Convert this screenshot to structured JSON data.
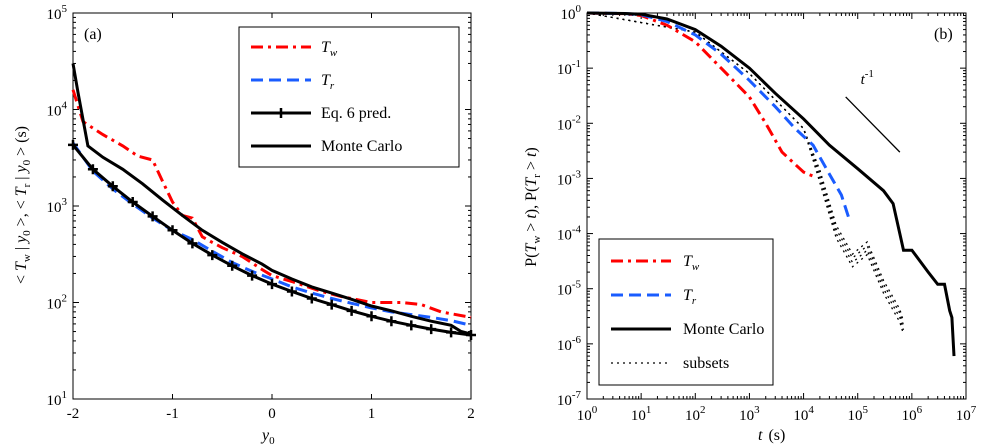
{
  "colors": {
    "red": "#ff0000",
    "blue": "#1a5cff",
    "black": "#000000"
  },
  "chart_data": [
    {
      "panel": "(a)",
      "type": "line",
      "xlabel_var": "y",
      "xlabel_sub": "0",
      "ylabel": "< T_w | y_0 >, < T_r | y_0 > (s)",
      "xlim": [
        -2,
        2
      ],
      "ylim": [
        10,
        100000
      ],
      "yscale": "log",
      "x_ticks": [
        "-2",
        "-1",
        "0",
        "1",
        "2"
      ],
      "y_ticks": [
        {
          "base": "10",
          "exp": "1"
        },
        {
          "base": "10",
          "exp": "2"
        },
        {
          "base": "10",
          "exp": "3"
        },
        {
          "base": "10",
          "exp": "4"
        },
        {
          "base": "10",
          "exp": "5"
        }
      ],
      "legend": [
        {
          "label": "T",
          "sub": "w",
          "italic": true,
          "series": "Tw"
        },
        {
          "label": "T",
          "sub": "r",
          "italic": true,
          "series": "Tr"
        },
        {
          "label": "Eq. 6 pred.",
          "sub": "",
          "italic": false,
          "series": "eq6"
        },
        {
          "label": "Monte Carlo",
          "sub": "",
          "italic": false,
          "series": "mc"
        }
      ],
      "series": [
        {
          "key": "Tw",
          "color": "red",
          "dash": "dashdot",
          "x": [
            -2.0,
            -1.9,
            -1.7,
            -1.5,
            -1.35,
            -1.2,
            -1.1,
            -1.0,
            -0.9,
            -0.8,
            -0.7,
            -0.6,
            -0.5,
            -0.3,
            -0.1,
            0.0,
            0.2,
            0.5,
            0.7,
            1.0,
            1.3,
            1.5,
            1.7,
            2.0
          ],
          "y": [
            16000,
            7500,
            5500,
            4200,
            3300,
            3000,
            1800,
            1100,
            800,
            750,
            480,
            420,
            370,
            300,
            220,
            190,
            165,
            130,
            115,
            100,
            100,
            95,
            80,
            70
          ]
        },
        {
          "key": "Tr",
          "color": "blue",
          "dash": "dash",
          "x": [
            -2.0,
            -1.8,
            -1.6,
            -1.4,
            -1.2,
            -1.0,
            -0.8,
            -0.6,
            -0.4,
            -0.2,
            0.0,
            0.2,
            0.4,
            0.6,
            0.8,
            1.0,
            1.2,
            1.4,
            1.6,
            1.8,
            2.0
          ],
          "y": [
            4500,
            2300,
            1500,
            1050,
            750,
            560,
            450,
            340,
            260,
            210,
            175,
            145,
            125,
            110,
            98,
            88,
            80,
            75,
            70,
            65,
            58
          ]
        },
        {
          "key": "eq6",
          "color": "black",
          "dash": "solid",
          "markers": "plus",
          "x": [
            -2.0,
            -1.8,
            -1.6,
            -1.4,
            -1.2,
            -1.0,
            -0.8,
            -0.6,
            -0.4,
            -0.2,
            0.0,
            0.2,
            0.4,
            0.6,
            0.8,
            1.0,
            1.2,
            1.4,
            1.6,
            1.8,
            2.0
          ],
          "y": [
            4300,
            2400,
            1600,
            1100,
            780,
            560,
            410,
            310,
            240,
            190,
            155,
            130,
            110,
            95,
            82,
            72,
            64,
            58,
            53,
            49,
            46
          ]
        },
        {
          "key": "mc",
          "color": "black",
          "dash": "solid",
          "x": [
            -2.0,
            -1.95,
            -1.85,
            -1.7,
            -1.5,
            -1.3,
            -1.1,
            -0.9,
            -0.7,
            -0.5,
            -0.3,
            -0.1,
            0.0,
            0.2,
            0.4,
            0.6,
            0.8,
            1.0,
            1.2,
            1.4,
            1.6,
            1.8,
            1.9,
            2.0
          ],
          "y": [
            30000,
            15000,
            4200,
            3200,
            2400,
            1700,
            1150,
            800,
            560,
            420,
            320,
            250,
            215,
            175,
            145,
            125,
            108,
            92,
            82,
            72,
            64,
            58,
            50,
            47
          ]
        }
      ]
    },
    {
      "panel": "(b)",
      "type": "line",
      "xlabel_var": "t",
      "xlabel_unit": "(s)",
      "ylabel": "P(T_w > t), P(T_r > t)",
      "xlim": [
        1,
        10000000
      ],
      "ylim": [
        1e-07,
        1
      ],
      "xscale": "log",
      "yscale": "log",
      "x_ticks": [
        {
          "base": "10",
          "exp": "0"
        },
        {
          "base": "10",
          "exp": "1"
        },
        {
          "base": "10",
          "exp": "2"
        },
        {
          "base": "10",
          "exp": "3"
        },
        {
          "base": "10",
          "exp": "4"
        },
        {
          "base": "10",
          "exp": "5"
        },
        {
          "base": "10",
          "exp": "6"
        },
        {
          "base": "10",
          "exp": "7"
        }
      ],
      "y_ticks": [
        {
          "base": "10",
          "exp": "-7"
        },
        {
          "base": "10",
          "exp": "-6"
        },
        {
          "base": "10",
          "exp": "-5"
        },
        {
          "base": "10",
          "exp": "-4"
        },
        {
          "base": "10",
          "exp": "-3"
        },
        {
          "base": "10",
          "exp": "-2"
        },
        {
          "base": "10",
          "exp": "-1"
        },
        {
          "base": "10",
          "exp": "0"
        }
      ],
      "annotation": {
        "base": "t",
        "exp": "-1"
      },
      "legend": [
        {
          "label": "T",
          "sub": "w",
          "italic": true,
          "series": "Tw"
        },
        {
          "label": "T",
          "sub": "r",
          "italic": true,
          "series": "Tr"
        },
        {
          "label": "Monte Carlo",
          "sub": "",
          "italic": false,
          "series": "mc"
        },
        {
          "label": "subsets",
          "sub": "",
          "italic": false,
          "series": "subsets"
        }
      ],
      "series": [
        {
          "key": "Tw",
          "color": "red",
          "dash": "dashdot",
          "x": [
            1,
            5,
            10,
            30,
            100,
            300,
            1000,
            2000,
            4000,
            7000,
            10000,
            12000,
            15000
          ],
          "y": [
            1,
            0.97,
            0.9,
            0.6,
            0.3,
            0.1,
            0.03,
            0.01,
            0.003,
            0.0018,
            0.0013,
            0.0012,
            0.0011
          ]
        },
        {
          "key": "Tr",
          "color": "blue",
          "dash": "dash",
          "x": [
            1,
            5,
            10,
            30,
            100,
            300,
            1000,
            3000,
            7000,
            15000,
            30000,
            50000,
            70000
          ],
          "y": [
            1,
            0.98,
            0.93,
            0.7,
            0.4,
            0.18,
            0.06,
            0.02,
            0.008,
            0.004,
            0.0012,
            0.0005,
            0.00018
          ]
        },
        {
          "key": "mc",
          "color": "black",
          "dash": "solid",
          "x": [
            1,
            5,
            10,
            30,
            100,
            300,
            1000,
            3000,
            10000,
            30000,
            100000,
            300000,
            450000,
            600000,
            700000,
            1000000,
            2000000,
            3000000,
            4000000,
            5000000,
            5500000,
            6000000
          ],
          "y": [
            1,
            0.98,
            0.95,
            0.78,
            0.5,
            0.25,
            0.1,
            0.035,
            0.012,
            0.004,
            0.0015,
            0.0006,
            0.00035,
            0.0001,
            5e-05,
            5e-05,
            2e-05,
            1.2e-05,
            1.2e-05,
            4e-06,
            3e-06,
            6e-07
          ]
        },
        {
          "key": "subsets",
          "color": "black",
          "dash": "dot",
          "x": [
            1,
            100,
            1000,
            10000,
            20000,
            40000,
            80000,
            150000,
            300000,
            600000,
            700000
          ],
          "y": [
            1,
            0.45,
            0.08,
            0.008,
            0.001,
            0.0001,
            3e-05,
            5e-05,
            1e-05,
            3e-06,
            1.8e-06
          ]
        }
      ]
    }
  ]
}
